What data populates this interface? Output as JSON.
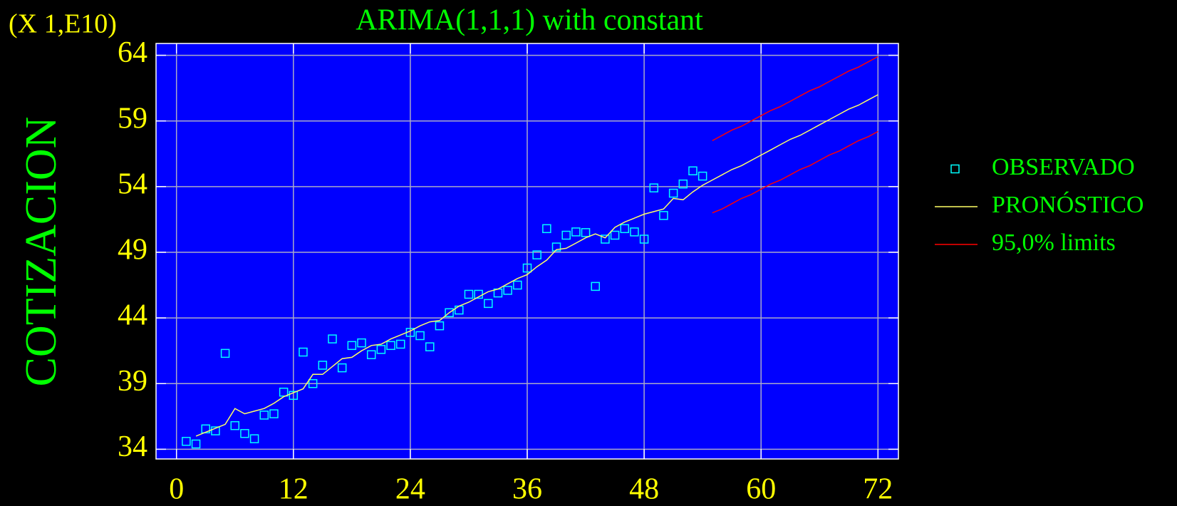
{
  "chart_data": {
    "type": "line",
    "title": "ARIMA(1,1,1) with constant",
    "y_label": "COTIZACION",
    "y_scale_label": "(X 1,E10)",
    "xlim": [
      -2.1,
      74.1
    ],
    "ylim": [
      33.26,
      64.9
    ],
    "xticks": [
      0,
      12,
      24,
      36,
      48,
      60,
      72
    ],
    "yticks": [
      34,
      39,
      44,
      49,
      54,
      59,
      64
    ],
    "grid": true,
    "legend": "right",
    "series": [
      {
        "name": "OBSERVADO",
        "color": "#00ffff",
        "x": [
          1,
          2,
          3,
          4,
          5,
          6,
          7,
          8,
          9,
          10,
          11,
          12,
          13,
          14,
          15,
          16,
          17,
          18,
          19,
          20,
          21,
          22,
          23,
          24,
          25,
          26,
          27,
          28,
          29,
          30,
          31,
          32,
          33,
          34,
          35,
          36,
          37,
          38,
          39,
          40,
          41,
          42,
          43,
          44,
          45,
          46,
          47,
          48,
          49,
          50,
          51,
          52,
          53,
          54
        ],
        "values": [
          34.6,
          34.4,
          35.55,
          35.4,
          41.3,
          35.8,
          35.2,
          34.8,
          36.6,
          36.7,
          38.35,
          38.1,
          41.4,
          39.0,
          40.4,
          42.4,
          40.2,
          41.9,
          42.1,
          41.2,
          41.6,
          41.9,
          42.0,
          42.9,
          42.65,
          41.8,
          43.4,
          44.4,
          44.6,
          45.8,
          45.8,
          45.1,
          45.9,
          46.1,
          46.5,
          47.8,
          48.8,
          50.8,
          49.4,
          50.3,
          50.55,
          50.5,
          46.4,
          50.0,
          50.3,
          50.8,
          50.55,
          50.0,
          53.9,
          51.8,
          53.5,
          54.2,
          55.2,
          54.8
        ]
      },
      {
        "name": "PRONÓSTICO",
        "color": "#ffff66",
        "x": [
          2,
          3,
          4,
          5,
          6,
          7,
          8,
          9,
          10,
          11,
          12,
          13,
          14,
          15,
          16,
          17,
          18,
          19,
          20,
          21,
          22,
          23,
          24,
          25,
          26,
          27,
          28,
          29,
          30,
          31,
          32,
          33,
          34,
          35,
          36,
          37,
          38,
          39,
          40,
          41,
          42,
          43,
          44,
          45,
          46,
          47,
          48,
          49,
          50,
          51,
          52,
          53,
          54,
          55,
          56,
          57,
          58,
          59,
          60,
          61,
          62,
          63,
          64,
          65,
          66,
          67,
          68,
          69,
          70,
          71,
          72
        ],
        "values": [
          35.0,
          35.3,
          35.6,
          35.9,
          37.1,
          36.7,
          36.9,
          37.1,
          37.5,
          38.0,
          38.3,
          38.6,
          39.7,
          39.7,
          40.3,
          40.9,
          41.0,
          41.5,
          41.9,
          42.0,
          42.4,
          42.7,
          43.0,
          43.4,
          43.7,
          43.8,
          44.4,
          44.9,
          45.2,
          45.6,
          46.0,
          46.2,
          46.6,
          47.0,
          47.3,
          47.9,
          48.4,
          49.2,
          49.3,
          49.7,
          50.1,
          50.4,
          50.1,
          50.9,
          51.3,
          51.6,
          51.9,
          52.1,
          52.3,
          53.1,
          53.0,
          53.6,
          54.1,
          54.5,
          54.9,
          55.3,
          55.6,
          56.0,
          56.4,
          56.8,
          57.2,
          57.6,
          57.9,
          58.3,
          58.7,
          59.1,
          59.5,
          59.9,
          60.2,
          60.6,
          61.0
        ]
      },
      {
        "name": "95,0% limits",
        "color": "#ff0000",
        "x": [
          55,
          56,
          57,
          58,
          59,
          60,
          61,
          62,
          63,
          64,
          65,
          66,
          67,
          68,
          69,
          70,
          71,
          72
        ],
        "upper": [
          57.5,
          57.9,
          58.3,
          58.6,
          59.0,
          59.4,
          59.8,
          60.1,
          60.5,
          60.9,
          61.3,
          61.6,
          62.0,
          62.4,
          62.8,
          63.1,
          63.5,
          63.9
        ],
        "lower": [
          52.0,
          52.3,
          52.7,
          53.1,
          53.4,
          53.8,
          54.2,
          54.5,
          54.9,
          55.3,
          55.6,
          56.0,
          56.4,
          56.7,
          57.1,
          57.5,
          57.8,
          58.2
        ]
      }
    ]
  }
}
